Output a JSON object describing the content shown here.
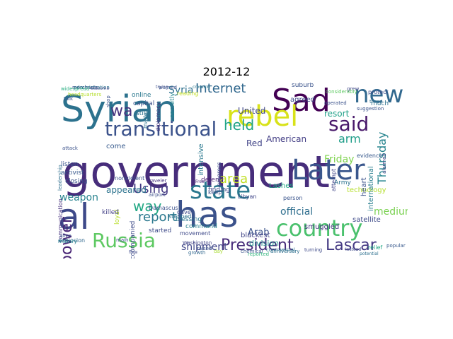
{
  "title": "2012-12",
  "palette": "viridis",
  "words": [
    {
      "text": "government",
      "color": "#472d7b"
    },
    {
      "text": "Syrian",
      "color": "#2c728e"
    },
    {
      "text": "Sad",
      "color": "#440154"
    },
    {
      "text": "rebel",
      "color": "#d8e219"
    },
    {
      "text": "new",
      "color": "#31688e"
    },
    {
      "text": "said",
      "color": "#48186a"
    },
    {
      "text": "transitional",
      "color": "#3b528b"
    },
    {
      "text": "al",
      "color": "#3e4989"
    },
    {
      "text": "has",
      "color": "#3b528b"
    },
    {
      "text": "Later",
      "color": "#39568c"
    },
    {
      "text": "state",
      "color": "#2a788e"
    },
    {
      "text": "country",
      "color": "#4ac16d"
    },
    {
      "text": "Russia",
      "color": "#5ec962"
    },
    {
      "text": "President",
      "color": "#472c7a"
    },
    {
      "text": "Lascar",
      "color": "#443983"
    },
    {
      "text": "Internet",
      "color": "#31688e"
    },
    {
      "text": "wa",
      "color": "#46327e"
    },
    {
      "text": "report",
      "color": "#2a788e"
    },
    {
      "text": "Using",
      "color": "#443983"
    },
    {
      "text": "way",
      "color": "#22a884"
    },
    {
      "text": "area",
      "color": "#c0df25"
    },
    {
      "text": "held",
      "color": "#20a486"
    },
    {
      "text": "arm",
      "color": "#1f9e89"
    },
    {
      "text": "Thursday",
      "color": "#25848e"
    },
    {
      "text": "power",
      "color": "#482475"
    },
    {
      "text": "weapon",
      "color": "#26828e"
    },
    {
      "text": "shipment",
      "color": "#404688"
    },
    {
      "text": "official",
      "color": "#2e6e8e"
    },
    {
      "text": "medium",
      "color": "#7ad151"
    },
    {
      "text": "Friday",
      "color": "#7fd34e"
    },
    {
      "text": "United",
      "color": "#3f4788"
    },
    {
      "text": "American",
      "color": "#433e85"
    },
    {
      "text": "Red",
      "color": "#414487"
    },
    {
      "text": "resort",
      "color": "#1fa188"
    },
    {
      "text": "appeared",
      "color": "#2c738e"
    },
    {
      "text": "Syria",
      "color": "#2d708e"
    },
    {
      "text": "Arab",
      "color": "#3b528b"
    },
    {
      "text": "division",
      "color": "#21918c"
    },
    {
      "text": "technology",
      "color": "#b5de2b"
    },
    {
      "text": "international",
      "color": "#287d8e"
    },
    {
      "text": "satellite",
      "color": "#3e4a89"
    },
    {
      "text": "smuggled",
      "color": "#453781"
    },
    {
      "text": "blackest",
      "color": "#414487"
    },
    {
      "text": "Lashes",
      "color": "#22a884"
    },
    {
      "text": "finding",
      "color": "#3f4889"
    },
    {
      "text": "heart",
      "color": "#3b528b"
    },
    {
      "text": "Army",
      "color": "#2c728e"
    },
    {
      "text": "accompanied",
      "color": "#3e4c8a"
    },
    {
      "text": "loyal",
      "color": "#b8de29"
    },
    {
      "text": "communication",
      "color": "#46307e"
    },
    {
      "text": "killed",
      "color": "#423f85"
    },
    {
      "text": "explosion",
      "color": "#31688e"
    },
    {
      "text": "started",
      "color": "#3e4a89"
    },
    {
      "text": "blessing",
      "color": "#2a768e"
    },
    {
      "text": "online",
      "color": "#2a788e"
    },
    {
      "text": "capital",
      "color": "#3c4f8a"
    },
    {
      "text": "still",
      "color": "#2d708e"
    },
    {
      "text": "secretly",
      "color": "#24878e"
    },
    {
      "text": "reading",
      "color": "#c2df23"
    },
    {
      "text": "diplomacy",
      "color": "#46327e"
    },
    {
      "text": "come",
      "color": "#375a8c"
    },
    {
      "text": "activist",
      "color": "#38588c"
    },
    {
      "text": "listen",
      "color": "#3a548c"
    },
    {
      "text": "closing",
      "color": "#3b528b"
    },
    {
      "text": "suburb",
      "color": "#3a538b"
    },
    {
      "text": "much",
      "color": "#2c718e"
    },
    {
      "text": "protect",
      "color": "#3d4e8a"
    },
    {
      "text": "three",
      "color": "#2e6f8e"
    },
    {
      "text": "evidence",
      "color": "#38598c"
    },
    {
      "text": "defend",
      "color": "#481f70"
    },
    {
      "text": "keep",
      "color": "#3b528b"
    },
    {
      "text": "intensive",
      "color": "#2a788e"
    },
    {
      "text": "Libyan",
      "color": "#404588"
    },
    {
      "text": "person",
      "color": "#3a548c"
    },
    {
      "text": "command",
      "color": "#26828e"
    },
    {
      "text": "movement",
      "color": "#3e4989"
    },
    {
      "text": "stepped",
      "color": "#2d718e"
    },
    {
      "text": "gave",
      "color": "#3e4a89"
    },
    {
      "text": "relief",
      "color": "#22a785"
    },
    {
      "text": "attempt",
      "color": "#404688"
    },
    {
      "text": "progress",
      "color": "#3d4d8a"
    },
    {
      "text": "reported",
      "color": "#2fb47c"
    },
    {
      "text": "Damascus",
      "color": "#3b528b"
    },
    {
      "text": "nonviolent",
      "color": "#3a538b"
    },
    {
      "text": "made",
      "color": "#2c738e"
    },
    {
      "text": "military",
      "color": "#25848e"
    },
    {
      "text": "alive",
      "color": "#3a548c"
    },
    {
      "text": "airport",
      "color": "#3c4f8a"
    },
    {
      "text": "attack",
      "color": "#3b528b"
    },
    {
      "text": "agreed",
      "color": "#3e4989"
    },
    {
      "text": "day",
      "color": "#a8db34"
    },
    {
      "text": "leadership",
      "color": "#2e6e8e"
    },
    {
      "text": "headquarters",
      "color": "#b5de2b"
    },
    {
      "text": "merchants",
      "color": "#3e4a89"
    },
    {
      "text": "administration",
      "color": "#2c728e"
    },
    {
      "text": "widespread",
      "color": "#27ad81"
    },
    {
      "text": "Free",
      "color": "#482878"
    },
    {
      "text": "traveler",
      "color": "#46337f"
    },
    {
      "text": "shop",
      "color": "#3b528b"
    },
    {
      "text": "talk",
      "color": "#3a548c"
    },
    {
      "text": "alarmed",
      "color": "#414487"
    },
    {
      "text": "popular",
      "color": "#38598c"
    },
    {
      "text": "warned",
      "color": "#3b528b"
    },
    {
      "text": "crossing",
      "color": "#2a788e"
    },
    {
      "text": "grew",
      "color": "#3f4788"
    },
    {
      "text": "main",
      "color": "#3e4c8a"
    },
    {
      "text": "growth",
      "color": "#31688e"
    },
    {
      "text": "Washington",
      "color": "#414487"
    },
    {
      "text": "raised",
      "color": "#3b528b"
    },
    {
      "text": "turning",
      "color": "#3e4a89"
    },
    {
      "text": "commercial",
      "color": "#2c728e"
    },
    {
      "text": "chemical",
      "color": "#3a548c"
    },
    {
      "text": "anniversary",
      "color": "#2e6f8e"
    },
    {
      "text": "trying",
      "color": "#3d4e8a"
    },
    {
      "text": "flew",
      "color": "#3e4989"
    },
    {
      "text": "considerably",
      "color": "#5ec962"
    },
    {
      "text": "suggestion",
      "color": "#3a538b"
    },
    {
      "text": "operated",
      "color": "#3b528b"
    },
    {
      "text": "instead",
      "color": "#3e4a89"
    },
    {
      "text": "potential",
      "color": "#2d708e"
    },
    {
      "text": "outcome",
      "color": "#3e4989"
    },
    {
      "text": "content",
      "color": "#3a548c"
    }
  ]
}
